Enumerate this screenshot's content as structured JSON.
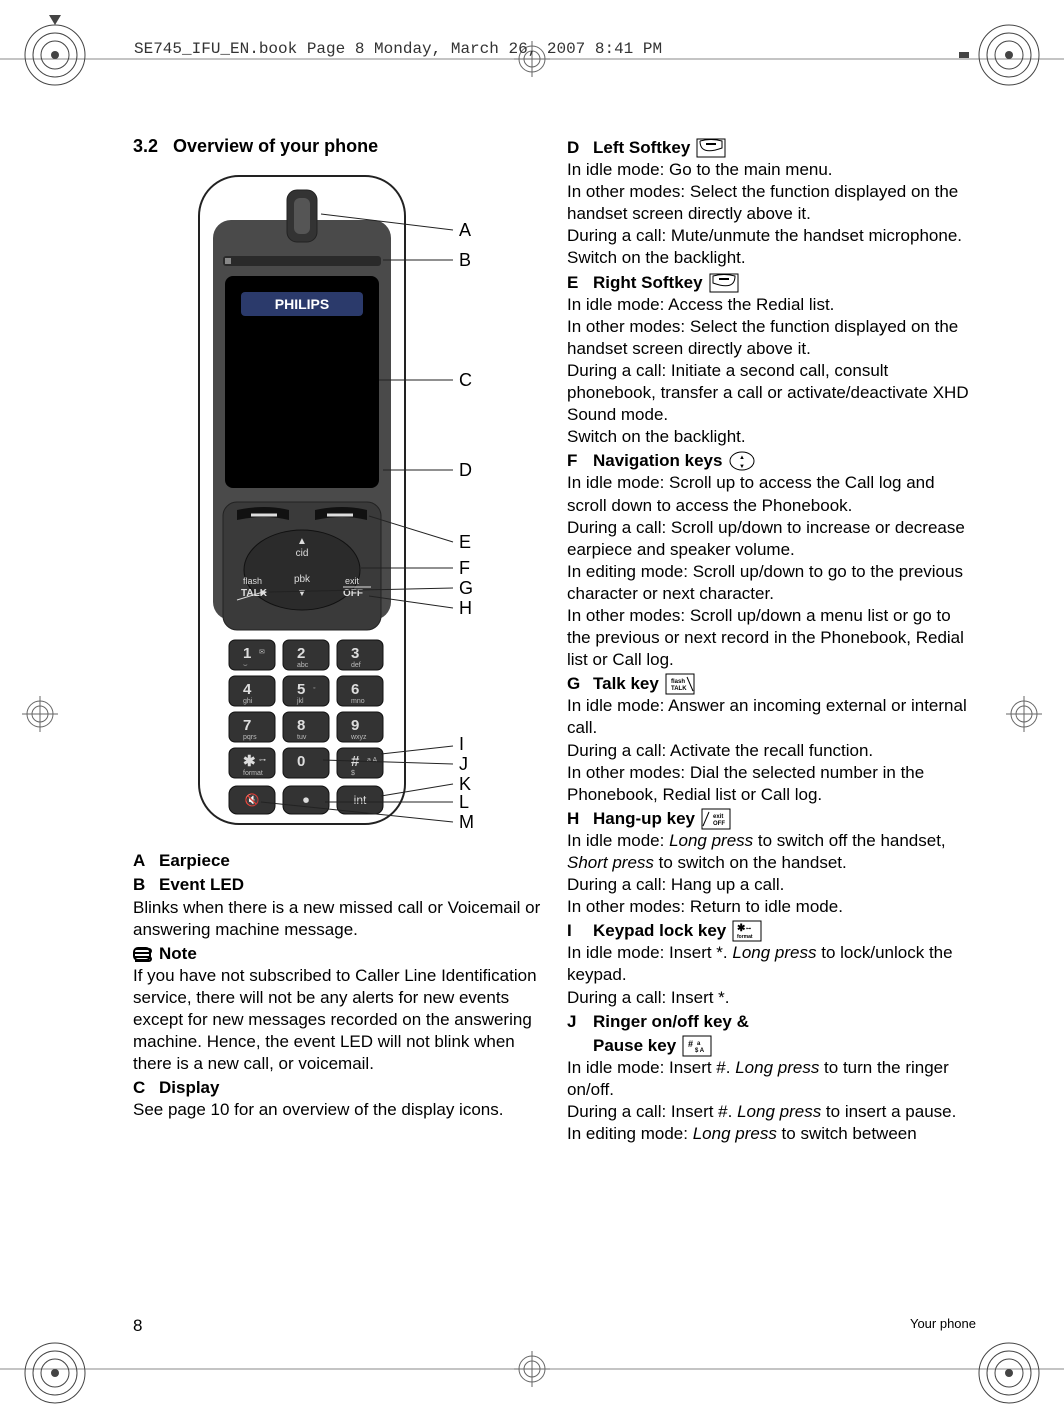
{
  "page": {
    "header_text": "SE745_IFU_EN.book  Page 8  Monday, March 26, 2007  8:41 PM",
    "page_number": "8",
    "footer_label": "Your phone"
  },
  "colors": {
    "text": "#000000",
    "rule": "#888888",
    "bg": "#ffffff",
    "phone_body": "#444444",
    "phone_outline": "#222222",
    "phone_screen": "#000000",
    "philips_bg": "#2b3a6b",
    "philips_text": "#ffffff"
  },
  "left": {
    "section_number": "3.2",
    "section_title": "Overview of your phone",
    "labels": [
      "A",
      "B",
      "C",
      "D",
      "E",
      "F",
      "G",
      "H",
      "I",
      "J",
      "K",
      "L",
      "M"
    ],
    "items": {
      "A": {
        "title": "Earpiece"
      },
      "B": {
        "title": "Event LED",
        "body": "Blinks when there is a new missed call or Voicemail or answering machine message."
      },
      "note_label": "Note",
      "note_body": "If you have not subscribed to Caller Line Identification service, there will not be any alerts for new events except for new messages recorded on the answering machine. Hence, the event LED will not blink when there is a new call, or voicemail.",
      "C": {
        "title": "Display",
        "body": "See page 10 for an overview of the display icons."
      }
    }
  },
  "right": {
    "D": {
      "title": "Left Softkey",
      "lines": [
        "In idle mode: Go to the main menu.",
        "In other modes: Select the function displayed on the handset screen directly above it.",
        "During a call: Mute/unmute the handset microphone.",
        "Switch on the backlight."
      ]
    },
    "E": {
      "title": "Right Softkey",
      "lines": [
        "In idle mode: Access the Redial list.",
        "In other modes: Select the function displayed on the handset screen directly above it.",
        "During a call: Initiate a second call, consult phonebook, transfer a call or activate/deactivate XHD Sound mode.",
        "Switch on the backlight."
      ]
    },
    "F": {
      "title": "Navigation keys",
      "lines": [
        "In idle mode: Scroll up to access the Call log and scroll down to access the Phonebook.",
        "During a call: Scroll up/down to increase or decrease earpiece and speaker volume.",
        "In editing mode: Scroll up/down to go to the previous character or next character.",
        "In other modes: Scroll up/down a menu list or go to the previous or next record in the Phonebook, Redial list or Call log."
      ]
    },
    "G": {
      "title": "Talk key",
      "lines": [
        "In idle mode: Answer an incoming external or internal call.",
        "During a call: Activate the recall function.",
        "In other modes: Dial the selected number in the Phonebook, Redial list or Call log."
      ]
    },
    "H": {
      "title": "Hang-up key",
      "lines_html": [
        "In idle mode: <em>Long press</em> to switch off the handset, <em>Short press</em> to switch on the handset.",
        "During a call: Hang up a call.",
        "In other modes: Return to idle mode."
      ]
    },
    "I": {
      "title": "Keypad lock key",
      "lines_html": [
        "In idle mode: Insert *. <em>Long press</em> to lock/unlock the keypad.",
        "During a call: Insert *."
      ]
    },
    "J": {
      "title1": "Ringer on/off key &",
      "title2": "Pause key",
      "lines_html": [
        "In idle mode: Insert #. <em>Long press</em> to turn the ringer on/off.",
        "During a call: Insert #. <em>Long press</em> to insert a pause.",
        "In editing mode: <em>Long press</em> to switch between"
      ]
    }
  },
  "phone": {
    "brand": "PHILIPS",
    "soft_left": {
      "top": "▲",
      "mid": "cid"
    },
    "soft_mid": {
      "top": "pbk",
      "mid": "▼"
    },
    "row_left": {
      "top": "flash",
      "bot": "TALK"
    },
    "row_right": {
      "top": "exit",
      "bot": "OFF"
    },
    "keys": [
      [
        "1",
        "⌣",
        "✉"
      ],
      [
        "2",
        "abc",
        ""
      ],
      [
        "3",
        "def",
        ""
      ],
      [
        "4",
        "ghi",
        ""
      ],
      [
        "5",
        "jkl",
        "◦"
      ],
      [
        "6",
        "mno",
        ""
      ],
      [
        "7",
        "pqrs",
        ""
      ],
      [
        "8",
        "tuv",
        ""
      ],
      [
        "9",
        "wxyz",
        ""
      ],
      [
        "✱",
        "format",
        "⊶"
      ],
      [
        "0",
        "",
        ""
      ],
      [
        "#",
        "$",
        "a A"
      ]
    ],
    "bottom_keys": [
      "🔇",
      "⏺",
      "int"
    ]
  }
}
